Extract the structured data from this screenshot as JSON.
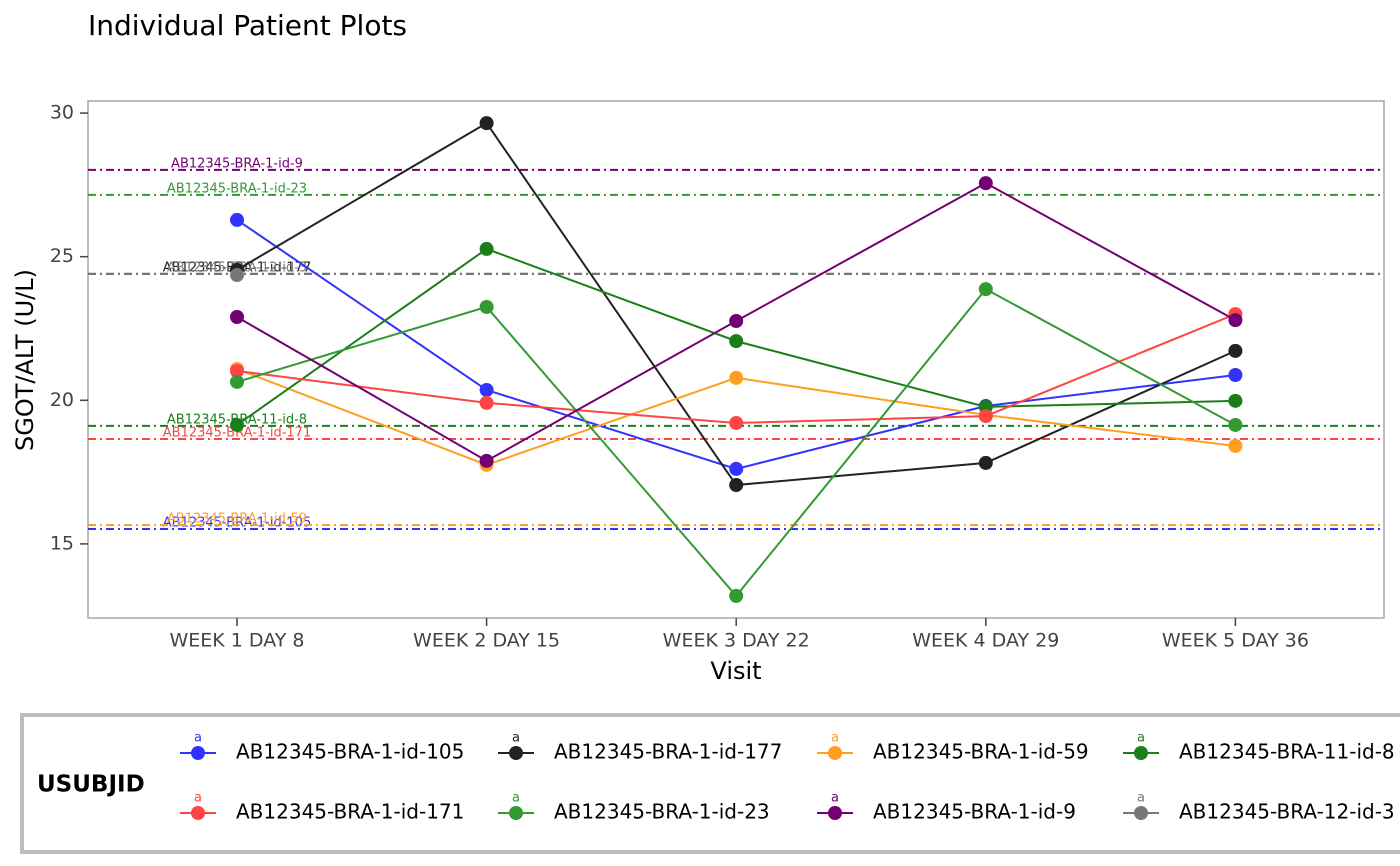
{
  "chart_data": {
    "type": "line",
    "title": "Individual Patient Plots",
    "x_label": "Visit",
    "y_label": "SGOT/ALT (U/L)",
    "categories": [
      "WEEK 1 DAY 8",
      "WEEK 2 DAY 15",
      "WEEK 3 DAY 22",
      "WEEK 4 DAY 29",
      "WEEK 5 DAY 36"
    ],
    "ylim": [
      12.42,
      30.42
    ],
    "yticks": [
      15,
      20,
      25,
      30
    ],
    "legend_title": "USUBJID",
    "legend_key_text": "a",
    "legend_position": "bottom",
    "series": [
      {
        "name": "AB12345-BRA-1-id-105",
        "color": "#3333ff",
        "values": [
          26.28,
          20.36,
          17.61,
          19.8,
          20.88
        ],
        "reference": 15.52
      },
      {
        "name": "AB12345-BRA-1-id-177",
        "color": "#222222",
        "values": [
          24.54,
          29.65,
          17.05,
          17.82,
          21.72
        ],
        "reference": 24.4
      },
      {
        "name": "AB12345-BRA-1-id-59",
        "color": "#ff9e1f",
        "values": [
          21.09,
          17.75,
          20.78,
          19.49,
          18.41
        ],
        "reference": 15.66
      },
      {
        "name": "AB12345-BRA-11-id-8",
        "color": "#1a7f1a",
        "values": [
          19.14,
          25.27,
          22.06,
          19.77,
          19.98
        ],
        "reference": 19.11
      },
      {
        "name": "AB12345-BRA-1-id-171",
        "color": "#ff4444",
        "values": [
          21.02,
          19.91,
          19.21,
          19.45,
          23.0
        ],
        "reference": 18.65
      },
      {
        "name": "AB12345-BRA-1-id-23",
        "color": "#339933",
        "values": [
          20.64,
          23.25,
          13.19,
          23.87,
          19.14
        ],
        "reference": 27.15
      },
      {
        "name": "AB12345-BRA-1-id-9",
        "color": "#730073",
        "values": [
          22.9,
          17.89,
          22.76,
          27.56,
          22.79
        ],
        "reference": 28.02
      },
      {
        "name": "AB12345-BRA-12-id-3",
        "color": "#777777",
        "values": [
          24.36,
          null,
          null,
          null,
          null
        ],
        "reference": 24.4
      }
    ]
  }
}
